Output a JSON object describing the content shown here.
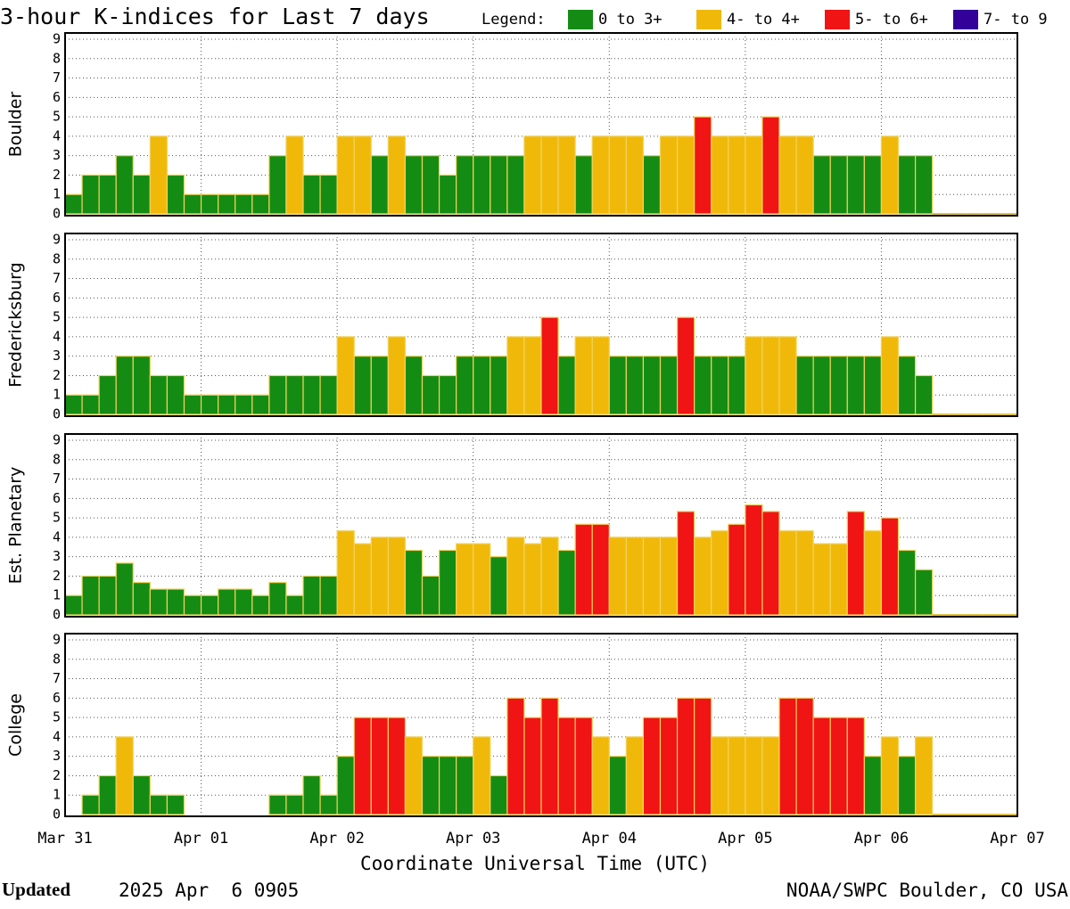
{
  "chart_data": {
    "type": "bar",
    "title": "3-hour K-indices for Last 7 days",
    "legend_title": "Legend:",
    "legend": [
      {
        "label": "0 to 3+",
        "color": "#148c14"
      },
      {
        "label": "4- to 4+",
        "color": "#f0b90a"
      },
      {
        "label": "5- to 6+",
        "color": "#f01414"
      },
      {
        "label": "7- to 9",
        "color": "#330099"
      }
    ],
    "xlabel": "Coordinate Universal Time (UTC)",
    "xlim": [
      0,
      56
    ],
    "xticks": [
      {
        "value": 0,
        "label": "Mar 31"
      },
      {
        "value": 8,
        "label": "Apr 01"
      },
      {
        "value": 16,
        "label": "Apr 02"
      },
      {
        "value": 24,
        "label": "Apr 03"
      },
      {
        "value": 32,
        "label": "Apr 04"
      },
      {
        "value": 40,
        "label": "Apr 05"
      },
      {
        "value": 48,
        "label": "Apr 06"
      },
      {
        "value": 56,
        "label": "Apr 07"
      }
    ],
    "ylim": [
      0,
      9
    ],
    "yticks": [
      0,
      1,
      2,
      3,
      4,
      5,
      6,
      7,
      8,
      9
    ],
    "grid": true,
    "series": [
      {
        "name": "Boulder",
        "values": [
          1,
          2,
          2,
          3,
          2,
          4,
          2,
          1,
          1,
          1,
          1,
          1,
          3,
          4,
          2,
          2,
          4,
          4,
          3,
          4,
          3,
          3,
          2,
          3,
          3,
          3,
          3,
          4,
          4,
          4,
          3,
          4,
          4,
          4,
          3,
          4,
          4,
          5,
          4,
          4,
          4,
          5,
          4,
          4,
          3,
          3,
          3,
          3,
          4,
          3,
          3,
          null,
          null,
          null,
          null,
          null
        ]
      },
      {
        "name": "Fredericksburg",
        "values": [
          1,
          1,
          2,
          3,
          3,
          2,
          2,
          1,
          1,
          1,
          1,
          1,
          2,
          2,
          2,
          2,
          4,
          3,
          3,
          4,
          3,
          2,
          2,
          3,
          3,
          3,
          4,
          4,
          5,
          3,
          4,
          4,
          3,
          3,
          3,
          3,
          5,
          3,
          3,
          3,
          4,
          4,
          4,
          3,
          3,
          3,
          3,
          3,
          4,
          3,
          2,
          null,
          null,
          null,
          null,
          null
        ]
      },
      {
        "name": "Est. Planetary",
        "values": [
          1,
          2,
          2,
          2.67,
          1.67,
          1.33,
          1.33,
          1,
          1,
          1.33,
          1.33,
          1,
          1.67,
          1,
          2,
          2,
          4.33,
          3.67,
          4,
          4,
          3.33,
          2,
          3.33,
          3.67,
          3.67,
          3,
          4,
          3.67,
          4,
          3.33,
          4.67,
          4.67,
          4,
          4,
          4,
          4,
          5.33,
          4,
          4.33,
          4.67,
          5.67,
          5.33,
          4.33,
          4.33,
          3.67,
          3.67,
          5.33,
          4.33,
          5,
          3.33,
          2.33,
          null,
          null,
          null,
          null,
          null
        ]
      },
      {
        "name": "College",
        "values": [
          0,
          1,
          2,
          4,
          2,
          1,
          1,
          0,
          0,
          0,
          0,
          0,
          1,
          1,
          2,
          1,
          3,
          5,
          5,
          5,
          4,
          3,
          3,
          3,
          4,
          2,
          6,
          5,
          6,
          5,
          5,
          4,
          3,
          4,
          5,
          5,
          6,
          6,
          4,
          4,
          4,
          4,
          6,
          6,
          5,
          5,
          5,
          3,
          4,
          3,
          4,
          null,
          null,
          null,
          null,
          null
        ]
      }
    ]
  },
  "footer": {
    "updated_label": "Updated",
    "updated_time": "2025 Apr  6 0905",
    "credit": "NOAA/SWPC Boulder, CO USA"
  }
}
